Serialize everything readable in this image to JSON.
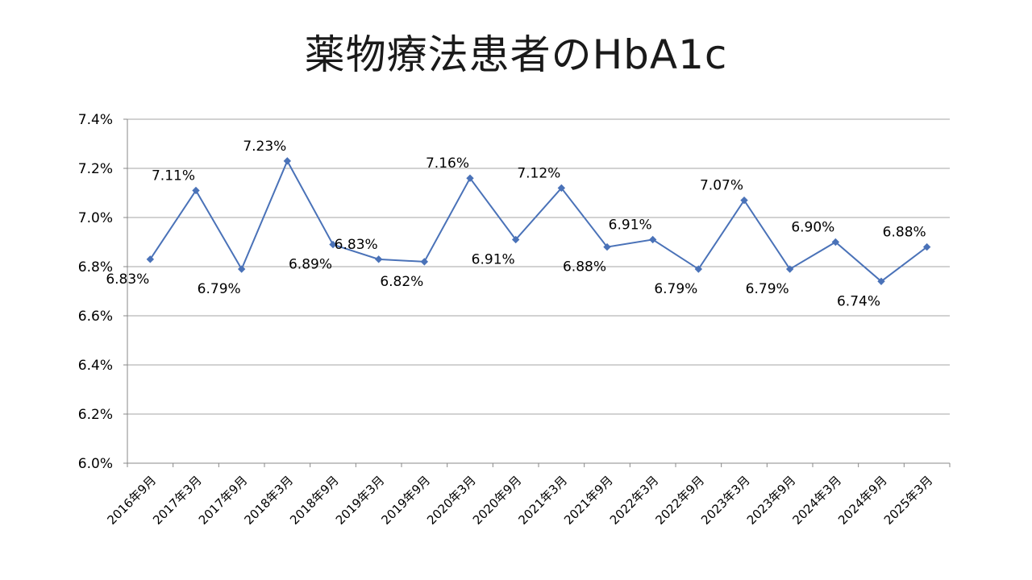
{
  "title": "薬物療法患者のHbA1c",
  "chart_data": {
    "type": "line",
    "title": "薬物療法患者のHbA1c",
    "xlabel": "",
    "ylabel": "",
    "ylim": [
      6.0,
      7.4
    ],
    "yticks": [
      6.0,
      6.2,
      6.4,
      6.6,
      6.8,
      7.0,
      7.2,
      7.4
    ],
    "ytick_labels": [
      "6.0%",
      "6.2%",
      "6.4%",
      "6.6%",
      "6.8%",
      "7.0%",
      "7.2%",
      "7.4%"
    ],
    "grid": true,
    "legend": "none",
    "categories": [
      "2016年9月",
      "2017年3月",
      "2017年9月",
      "2018年3月",
      "2018年9月",
      "2019年3月",
      "2019年9月",
      "2020年3月",
      "2020年9月",
      "2021年3月",
      "2021年9月",
      "2022年3月",
      "2022年9月",
      "2023年3月",
      "2023年9月",
      "2024年3月",
      "2024年9月",
      "2025年3月"
    ],
    "series": [
      {
        "values": [
          6.83,
          7.11,
          6.79,
          7.23,
          6.89,
          6.83,
          6.82,
          7.16,
          6.91,
          7.12,
          6.88,
          6.91,
          6.79,
          7.07,
          6.79,
          6.9,
          6.74,
          6.88
        ],
        "labels": [
          "6.83%",
          "7.11%",
          "6.79%",
          "7.23%",
          "6.89%",
          "6.83%",
          "6.82%",
          "7.16%",
          "6.91%",
          "7.12%",
          "6.88%",
          "6.91%",
          "6.79%",
          "7.07%",
          "6.79%",
          "6.90%",
          "6.74%",
          "6.88%"
        ],
        "label_positions": [
          "below",
          "above",
          "below",
          "above",
          "below",
          "above",
          "below",
          "above",
          "below",
          "above",
          "below",
          "above",
          "below",
          "above",
          "below",
          "above",
          "below",
          "above"
        ],
        "color": "#4a72b8"
      }
    ]
  }
}
